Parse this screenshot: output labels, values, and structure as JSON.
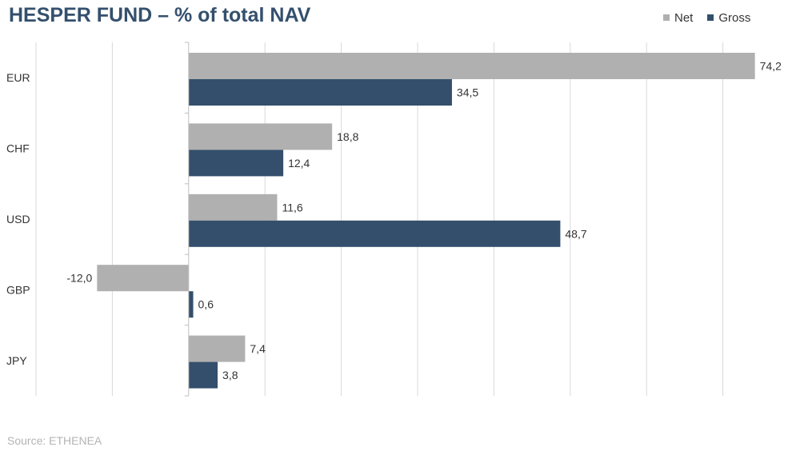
{
  "title": "HESPER FUND – % of total NAV",
  "source": "Source: ETHENEA",
  "legend": [
    {
      "name": "Net",
      "color": "#b0b0b0"
    },
    {
      "name": "Gross",
      "color": "#334f6c"
    }
  ],
  "chart_data": {
    "type": "bar",
    "orientation": "horizontal",
    "title": "HESPER FUND – % of total NAV",
    "categories": [
      "EUR",
      "CHF",
      "USD",
      "GBP",
      "JPY"
    ],
    "series": [
      {
        "name": "Net",
        "color": "#b0b0b0",
        "values": [
          74.2,
          18.8,
          11.6,
          -12.0,
          7.4
        ],
        "labels": [
          "74,2",
          "18,8",
          "11,6",
          "-12,0",
          "7,4"
        ]
      },
      {
        "name": "Gross",
        "color": "#334f6c",
        "values": [
          34.5,
          12.4,
          48.7,
          0.6,
          3.8
        ],
        "labels": [
          "34,5",
          "12,4",
          "48,7",
          "0,6",
          "3,8"
        ]
      }
    ],
    "xlim": [
      -20,
      80
    ],
    "grid": true,
    "legend_position": "top-right"
  }
}
